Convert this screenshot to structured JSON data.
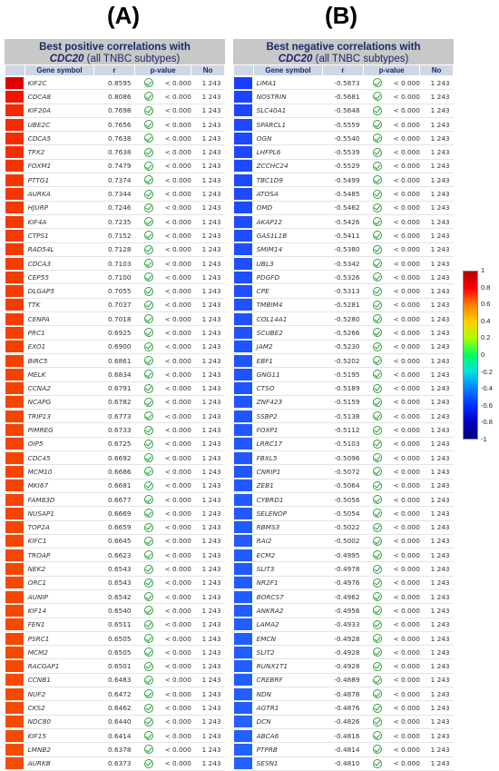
{
  "labels": {
    "a": "(A)",
    "b": "(B)"
  },
  "panel_a": {
    "title": "Best positive correlations with",
    "gene": "CDC20",
    "subtitle": "(all TNBC subtypes)",
    "headers": {
      "gene": "Gene symbol",
      "r": "r",
      "p": "p-value",
      "no": "No"
    },
    "rows": [
      {
        "gene": "KIF2C",
        "r": "0.8595",
        "p": "< 0.0001",
        "no": "1 243",
        "color": "#e00000"
      },
      {
        "gene": "CDCA8",
        "r": "0.8086",
        "p": "< 0.0001",
        "no": "1 243",
        "color": "#f01500"
      },
      {
        "gene": "KIF20A",
        "r": "0.7698",
        "p": "< 0.0001",
        "no": "1 243",
        "color": "#f42a00"
      },
      {
        "gene": "UBE2C",
        "r": "0.7656",
        "p": "< 0.0001",
        "no": "1 243",
        "color": "#f42c00"
      },
      {
        "gene": "CDCA5",
        "r": "0.7638",
        "p": "< 0.0001",
        "no": "1 243",
        "color": "#f42d00"
      },
      {
        "gene": "TPX2",
        "r": "0.7638",
        "p": "< 0.0001",
        "no": "1 243",
        "color": "#f42d00"
      },
      {
        "gene": "FOXM1",
        "r": "0.7479",
        "p": "< 0.0001",
        "no": "1 243",
        "color": "#f53200"
      },
      {
        "gene": "PTTG1",
        "r": "0.7374",
        "p": "< 0.0001",
        "no": "1 243",
        "color": "#f53500"
      },
      {
        "gene": "AURKA",
        "r": "0.7344",
        "p": "< 0.0001",
        "no": "1 243",
        "color": "#f53600"
      },
      {
        "gene": "HJURP",
        "r": "0.7246",
        "p": "< 0.0001",
        "no": "1 243",
        "color": "#f53800"
      },
      {
        "gene": "KIF4A",
        "r": "0.7235",
        "p": "< 0.0001",
        "no": "1 243",
        "color": "#f53800"
      },
      {
        "gene": "CTPS1",
        "r": "0.7152",
        "p": "< 0.0001",
        "no": "1 243",
        "color": "#f53a00"
      },
      {
        "gene": "RAD54L",
        "r": "0.7128",
        "p": "< 0.0001",
        "no": "1 243",
        "color": "#f53a00"
      },
      {
        "gene": "CDCA3",
        "r": "0.7103",
        "p": "< 0.0001",
        "no": "1 243",
        "color": "#f53b00"
      },
      {
        "gene": "CEP55",
        "r": "0.7100",
        "p": "< 0.0001",
        "no": "1 243",
        "color": "#f53b00"
      },
      {
        "gene": "DLGAP5",
        "r": "0.7055",
        "p": "< 0.0001",
        "no": "1 243",
        "color": "#f53c00"
      },
      {
        "gene": "TTK",
        "r": "0.7037",
        "p": "< 0.0001",
        "no": "1 243",
        "color": "#f53c00"
      },
      {
        "gene": "CENPA",
        "r": "0.7018",
        "p": "< 0.0001",
        "no": "1 243",
        "color": "#f53d00"
      },
      {
        "gene": "PRC1",
        "r": "0.6925",
        "p": "< 0.0001",
        "no": "1 243",
        "color": "#f54000"
      },
      {
        "gene": "EXO1",
        "r": "0.6900",
        "p": "< 0.0001",
        "no": "1 243",
        "color": "#f54000"
      },
      {
        "gene": "BIRC5",
        "r": "0.6861",
        "p": "< 0.0001",
        "no": "1 243",
        "color": "#f54100"
      },
      {
        "gene": "MELK",
        "r": "0.6834",
        "p": "< 0.0001",
        "no": "1 243",
        "color": "#f54200"
      },
      {
        "gene": "CCNA2",
        "r": "0.6791",
        "p": "< 0.0001",
        "no": "1 243",
        "color": "#f54300"
      },
      {
        "gene": "NCAPG",
        "r": "0.6782",
        "p": "< 0.0001",
        "no": "1 243",
        "color": "#f54300"
      },
      {
        "gene": "TRIP13",
        "r": "0.6773",
        "p": "< 0.0001",
        "no": "1 243",
        "color": "#f54300"
      },
      {
        "gene": "PIMREG",
        "r": "0.6733",
        "p": "< 0.0001",
        "no": "1 243",
        "color": "#f54400"
      },
      {
        "gene": "OIP5",
        "r": "0.6725",
        "p": "< 0.0001",
        "no": "1 243",
        "color": "#f54400"
      },
      {
        "gene": "CDC45",
        "r": "0.6692",
        "p": "< 0.0001",
        "no": "1 243",
        "color": "#f54500"
      },
      {
        "gene": "MCM10",
        "r": "0.6686",
        "p": "< 0.0001",
        "no": "1 243",
        "color": "#f54500"
      },
      {
        "gene": "MKI67",
        "r": "0.6681",
        "p": "< 0.0001",
        "no": "1 243",
        "color": "#f54500"
      },
      {
        "gene": "FAM83D",
        "r": "0.6677",
        "p": "< 0.0001",
        "no": "1 243",
        "color": "#f54500"
      },
      {
        "gene": "NUSAP1",
        "r": "0.6669",
        "p": "< 0.0001",
        "no": "1 243",
        "color": "#f54500"
      },
      {
        "gene": "TOP2A",
        "r": "0.6659",
        "p": "< 0.0001",
        "no": "1 243",
        "color": "#f54600"
      },
      {
        "gene": "KIFC1",
        "r": "0.6645",
        "p": "< 0.0001",
        "no": "1 243",
        "color": "#f54600"
      },
      {
        "gene": "TROAP",
        "r": "0.6623",
        "p": "< 0.0001",
        "no": "1 243",
        "color": "#f54600"
      },
      {
        "gene": "NEK2",
        "r": "0.6543",
        "p": "< 0.0001",
        "no": "1 243",
        "color": "#f54800"
      },
      {
        "gene": "ORC1",
        "r": "0.6543",
        "p": "< 0.0001",
        "no": "1 243",
        "color": "#f54800"
      },
      {
        "gene": "AUNIP",
        "r": "0.6542",
        "p": "< 0.0001",
        "no": "1 243",
        "color": "#f54800"
      },
      {
        "gene": "KIF14",
        "r": "0.6540",
        "p": "< 0.0001",
        "no": "1 243",
        "color": "#f54800"
      },
      {
        "gene": "FEN1",
        "r": "0.6511",
        "p": "< 0.0001",
        "no": "1 243",
        "color": "#f54900"
      },
      {
        "gene": "PSRC1",
        "r": "0.6505",
        "p": "< 0.0001",
        "no": "1 243",
        "color": "#f54900"
      },
      {
        "gene": "MCM2",
        "r": "0.6505",
        "p": "< 0.0001",
        "no": "1 243",
        "color": "#f54900"
      },
      {
        "gene": "RACGAP1",
        "r": "0.6501",
        "p": "< 0.0001",
        "no": "1 243",
        "color": "#f54900"
      },
      {
        "gene": "CCNB1",
        "r": "0.6483",
        "p": "< 0.0001",
        "no": "1 243",
        "color": "#f54a00"
      },
      {
        "gene": "NUF2",
        "r": "0.6472",
        "p": "< 0.0001",
        "no": "1 243",
        "color": "#f54a00"
      },
      {
        "gene": "CKS2",
        "r": "0.6462",
        "p": "< 0.0001",
        "no": "1 243",
        "color": "#f54a00"
      },
      {
        "gene": "NDC80",
        "r": "0.6440",
        "p": "< 0.0001",
        "no": "1 243",
        "color": "#f54b00"
      },
      {
        "gene": "KIF15",
        "r": "0.6414",
        "p": "< 0.0001",
        "no": "1 243",
        "color": "#f54b00"
      },
      {
        "gene": "LMNB2",
        "r": "0.6378",
        "p": "< 0.0001",
        "no": "1 243",
        "color": "#f54c00"
      },
      {
        "gene": "AURKB",
        "r": "0.6373",
        "p": "< 0.0001",
        "no": "1 243",
        "color": "#f54c00"
      }
    ]
  },
  "panel_b": {
    "title": "Best negative correlations with",
    "gene": "CDC20",
    "subtitle": "(all TNBC subtypes)",
    "headers": {
      "gene": "Gene symbol",
      "r": "r",
      "p": "p-value",
      "no": "No"
    },
    "rows": [
      {
        "gene": "LIMA1",
        "r": "-0.5873",
        "p": "< 0.0001",
        "no": "1 243",
        "color": "#1a3cff"
      },
      {
        "gene": "NOSTRIN",
        "r": "-0.5681",
        "p": "< 0.0001",
        "no": "1 243",
        "color": "#1c44ff"
      },
      {
        "gene": "SLC40A1",
        "r": "-0.5648",
        "p": "< 0.0001",
        "no": "1 243",
        "color": "#1c45ff"
      },
      {
        "gene": "SPARCL1",
        "r": "-0.5559",
        "p": "< 0.0001",
        "no": "1 243",
        "color": "#1d48ff"
      },
      {
        "gene": "OGN",
        "r": "-0.5540",
        "p": "< 0.0001",
        "no": "1 243",
        "color": "#1d48ff"
      },
      {
        "gene": "LHFPL6",
        "r": "-0.5539",
        "p": "< 0.0001",
        "no": "1 243",
        "color": "#1d48ff"
      },
      {
        "gene": "ZCCHC24",
        "r": "-0.5529",
        "p": "< 0.0001",
        "no": "1 243",
        "color": "#1d49ff"
      },
      {
        "gene": "TBC1D9",
        "r": "-0.5499",
        "p": "< 0.0001",
        "no": "1 243",
        "color": "#1d4aff"
      },
      {
        "gene": "ATOSA",
        "r": "-0.5485",
        "p": "< 0.0001",
        "no": "1 243",
        "color": "#1d4aff"
      },
      {
        "gene": "OMD",
        "r": "-0.5462",
        "p": "< 0.0001",
        "no": "1 243",
        "color": "#1d4bff"
      },
      {
        "gene": "AKAP12",
        "r": "-0.5426",
        "p": "< 0.0001",
        "no": "1 243",
        "color": "#1e4cff"
      },
      {
        "gene": "GAS1L1B",
        "r": "-0.5411",
        "p": "< 0.0001",
        "no": "1 243",
        "color": "#1e4dff"
      },
      {
        "gene": "SMIM14",
        "r": "-0.5380",
        "p": "< 0.0001",
        "no": "1 243",
        "color": "#1e4eff"
      },
      {
        "gene": "UBL3",
        "r": "-0.5342",
        "p": "< 0.0001",
        "no": "1 243",
        "color": "#1e4fff"
      },
      {
        "gene": "PDGFD",
        "r": "-0.5326",
        "p": "< 0.0001",
        "no": "1 243",
        "color": "#1e50ff"
      },
      {
        "gene": "CPE",
        "r": "-0.5313",
        "p": "< 0.0001",
        "no": "1 243",
        "color": "#1e50ff"
      },
      {
        "gene": "TMBIM4",
        "r": "-0.5281",
        "p": "< 0.0001",
        "no": "1 243",
        "color": "#1f51ff"
      },
      {
        "gene": "COL14A1",
        "r": "-0.5280",
        "p": "< 0.0001",
        "no": "1 243",
        "color": "#1f51ff"
      },
      {
        "gene": "SCUBE2",
        "r": "-0.5266",
        "p": "< 0.0001",
        "no": "1 243",
        "color": "#1f52ff"
      },
      {
        "gene": "JAM2",
        "r": "-0.5230",
        "p": "< 0.0001",
        "no": "1 243",
        "color": "#1f53ff"
      },
      {
        "gene": "EBF1",
        "r": "-0.5202",
        "p": "< 0.0001",
        "no": "1 243",
        "color": "#1f54ff"
      },
      {
        "gene": "GNG11",
        "r": "-0.5195",
        "p": "< 0.0001",
        "no": "1 243",
        "color": "#1f54ff"
      },
      {
        "gene": "CTSO",
        "r": "-0.5189",
        "p": "< 0.0001",
        "no": "1 243",
        "color": "#1f54ff"
      },
      {
        "gene": "ZNF423",
        "r": "-0.5159",
        "p": "< 0.0001",
        "no": "1 243",
        "color": "#2055ff"
      },
      {
        "gene": "SSBP2",
        "r": "-0.5138",
        "p": "< 0.0001",
        "no": "1 243",
        "color": "#2056ff"
      },
      {
        "gene": "FOXP1",
        "r": "-0.5112",
        "p": "< 0.0001",
        "no": "1 243",
        "color": "#2057ff"
      },
      {
        "gene": "LRRC17",
        "r": "-0.5103",
        "p": "< 0.0001",
        "no": "1 243",
        "color": "#2057ff"
      },
      {
        "gene": "FBXL5",
        "r": "-0.5096",
        "p": "< 0.0001",
        "no": "1 243",
        "color": "#2057ff"
      },
      {
        "gene": "CNRIP1",
        "r": "-0.5072",
        "p": "< 0.0001",
        "no": "1 243",
        "color": "#2058ff"
      },
      {
        "gene": "ZEB1",
        "r": "-0.5064",
        "p": "< 0.0001",
        "no": "1 243",
        "color": "#2058ff"
      },
      {
        "gene": "CYBRD1",
        "r": "-0.5056",
        "p": "< 0.0001",
        "no": "1 243",
        "color": "#2059ff"
      },
      {
        "gene": "SELENOP",
        "r": "-0.5054",
        "p": "< 0.0001",
        "no": "1 243",
        "color": "#2059ff"
      },
      {
        "gene": "RBMS3",
        "r": "-0.5022",
        "p": "< 0.0001",
        "no": "1 243",
        "color": "#215aff"
      },
      {
        "gene": "RAI2",
        "r": "-0.5002",
        "p": "< 0.0001",
        "no": "1 243",
        "color": "#215aff"
      },
      {
        "gene": "ECM2",
        "r": "-0.4995",
        "p": "< 0.0001",
        "no": "1 243",
        "color": "#215bff"
      },
      {
        "gene": "SLIT3",
        "r": "-0.4978",
        "p": "< 0.0001",
        "no": "1 243",
        "color": "#215bff"
      },
      {
        "gene": "NR2F1",
        "r": "-0.4976",
        "p": "< 0.0001",
        "no": "1 243",
        "color": "#215bff"
      },
      {
        "gene": "BORCS7",
        "r": "-0.4962",
        "p": "< 0.0001",
        "no": "1 243",
        "color": "#215cff"
      },
      {
        "gene": "ANKRA2",
        "r": "-0.4956",
        "p": "< 0.0001",
        "no": "1 243",
        "color": "#215cff"
      },
      {
        "gene": "LAMA2",
        "r": "-0.4933",
        "p": "< 0.0001",
        "no": "1 243",
        "color": "#215dff"
      },
      {
        "gene": "EMCN",
        "r": "-0.4928",
        "p": "< 0.0001",
        "no": "1 243",
        "color": "#215dff"
      },
      {
        "gene": "SLIT2",
        "r": "-0.4928",
        "p": "< 0.0001",
        "no": "1 243",
        "color": "#215dff"
      },
      {
        "gene": "RUNX1T1",
        "r": "-0.4928",
        "p": "< 0.0001",
        "no": "1 243",
        "color": "#215dff"
      },
      {
        "gene": "CREBRF",
        "r": "-0.4889",
        "p": "< 0.0001",
        "no": "1 243",
        "color": "#225eff"
      },
      {
        "gene": "NDN",
        "r": "-0.4878",
        "p": "< 0.0001",
        "no": "1 243",
        "color": "#225eff"
      },
      {
        "gene": "AGTR1",
        "r": "-0.4876",
        "p": "< 0.0001",
        "no": "1 243",
        "color": "#225eff"
      },
      {
        "gene": "DCN",
        "r": "-0.4826",
        "p": "< 0.0001",
        "no": "1 243",
        "color": "#2260ff"
      },
      {
        "gene": "ABCA6",
        "r": "-0.4816",
        "p": "< 0.0001",
        "no": "1 243",
        "color": "#2260ff"
      },
      {
        "gene": "PTPRB",
        "r": "-0.4814",
        "p": "< 0.0001",
        "no": "1 243",
        "color": "#2260ff"
      },
      {
        "gene": "SESN1",
        "r": "-0.4810",
        "p": "< 0.0001",
        "no": "1 243",
        "color": "#2260ff"
      }
    ]
  },
  "colorbar": {
    "ticks": [
      "1",
      "0.8",
      "0.6",
      "0.4",
      "0.2",
      "0",
      "-0.2",
      "-0.4",
      "-0.6",
      "-0.8",
      "-1"
    ],
    "range": [
      -1,
      1
    ]
  }
}
